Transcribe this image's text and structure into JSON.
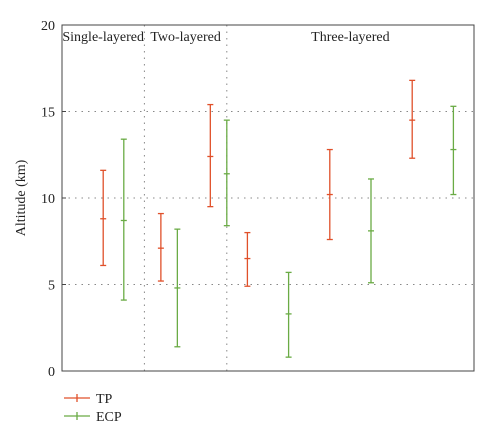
{
  "chart_data": {
    "type": "errorbar",
    "ylabel": "Altitude (km)",
    "ylim": [
      0,
      20
    ],
    "yticks": [
      0,
      5,
      10,
      15,
      20
    ],
    "grid": "dotted",
    "groups": [
      {
        "label": "Single-layered",
        "span": [
          0,
          1
        ]
      },
      {
        "label": "Two-layered",
        "span": [
          1,
          2
        ]
      },
      {
        "label": "Three-layered",
        "span": [
          2,
          5
        ]
      }
    ],
    "series": [
      {
        "name": "TP",
        "color": "#e0502a",
        "points": [
          {
            "x": 0.5,
            "mid": 8.8,
            "low": 6.1,
            "high": 11.6
          },
          {
            "x": 1.2,
            "mid": 7.1,
            "low": 5.2,
            "high": 9.1
          },
          {
            "x": 1.8,
            "mid": 12.4,
            "low": 9.5,
            "high": 15.4
          },
          {
            "x": 2.25,
            "mid": 6.5,
            "low": 4.9,
            "high": 8.0
          },
          {
            "x": 3.25,
            "mid": 10.2,
            "low": 7.6,
            "high": 12.8
          },
          {
            "x": 4.25,
            "mid": 14.5,
            "low": 12.3,
            "high": 16.8
          }
        ]
      },
      {
        "name": "ECP",
        "color": "#6aab45",
        "points": [
          {
            "x": 0.75,
            "mid": 8.7,
            "low": 4.1,
            "high": 13.4
          },
          {
            "x": 1.4,
            "mid": 4.8,
            "low": 1.4,
            "high": 8.2
          },
          {
            "x": 2.0,
            "mid": 11.4,
            "low": 8.4,
            "high": 14.5
          },
          {
            "x": 2.75,
            "mid": 3.3,
            "low": 0.8,
            "high": 5.7
          },
          {
            "x": 3.75,
            "mid": 8.1,
            "low": 5.1,
            "high": 11.1
          },
          {
            "x": 4.75,
            "mid": 12.8,
            "low": 10.2,
            "high": 15.3
          }
        ]
      }
    ]
  }
}
